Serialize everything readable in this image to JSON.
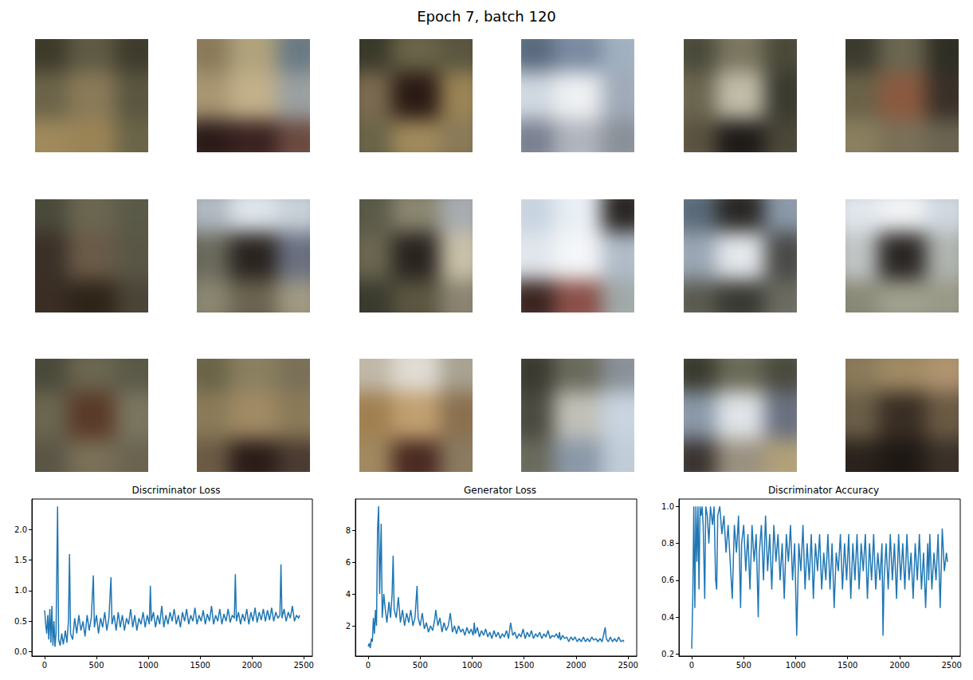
{
  "title": "Epoch 7, batch 120",
  "images": [
    [
      "#3d3a2a",
      "#5e5a44",
      "#3e3b2c",
      "#6b6448",
      "#8a7a58",
      "#5a5640",
      "#a08a5c",
      "#9a8456",
      "#6a6448"
    ],
    [
      "#8a7a5a",
      "#b0a27c",
      "#6a7a84",
      "#a89572",
      "#c2b08a",
      "#9aa0a0",
      "#2a1a18",
      "#3a2220",
      "#6a4a40"
    ],
    [
      "#3a3a2a",
      "#6a6448",
      "#5a5640",
      "#7a6a50",
      "#2a1a14",
      "#9a8456",
      "#6a6448",
      "#a08a5c",
      "#8a7a58"
    ],
    [
      "#5a6a7e",
      "#7a8aa0",
      "#a0b0c0",
      "#d0d8e0",
      "#eef0f2",
      "#a0aab8",
      "#7a8090",
      "#b0b4bc",
      "#8a9098"
    ],
    [
      "#4a4a3a",
      "#7a7660",
      "#4a4838",
      "#6a6650",
      "#c0bca8",
      "#3a3a30",
      "#5a5240",
      "#1e1a18",
      "#4a4638"
    ],
    [
      "#3a3a2e",
      "#6a6650",
      "#2e2e24",
      "#6a6248",
      "#8a5a40",
      "#3a3028",
      "#8a8060",
      "#7a7058",
      "#6a6450"
    ],
    [
      "#4a4a3a",
      "#6a6650",
      "#5a5a48",
      "#3a3028",
      "#6a5a48",
      "#5a5646",
      "#3a2e24",
      "#2e2418",
      "#4a4436"
    ],
    [
      "#b0b8c0",
      "#dde4ea",
      "#c8d0d8",
      "#6a6a5c",
      "#2a2420",
      "#6a7080",
      "#8a8670",
      "#6a6450",
      "#a09a84"
    ],
    [
      "#5a5a48",
      "#8a8670",
      "#a8acb0",
      "#6a6650",
      "#2a2420",
      "#c8c0a8",
      "#3a3a2e",
      "#5a5640",
      "#8a8470"
    ],
    [
      "#c8d4e0",
      "#e8eef4",
      "#2a2624",
      "#e0e6ec",
      "#f4f6f8",
      "#b0bcc8",
      "#3a2420",
      "#8a5048",
      "#a0a8a8"
    ],
    [
      "#5a6a78",
      "#2a2826",
      "#8a98a8",
      "#9aa6b4",
      "#e4e8ec",
      "#4a4a48",
      "#5a5a50",
      "#3a3a34",
      "#6a6a60"
    ],
    [
      "#e0e6ec",
      "#f0f2f4",
      "#d0d8e0",
      "#c0c4c4",
      "#2a2624",
      "#b0b4b0",
      "#8a8a78",
      "#a0a08e",
      "#9a9a88"
    ],
    [
      "#4a4a3a",
      "#6a6650",
      "#5a5a48",
      "#6a6650",
      "#5a3a28",
      "#7a7660",
      "#5a5646",
      "#7a7058",
      "#6a6450"
    ],
    [
      "#6a6448",
      "#8a8060",
      "#7a7058",
      "#8a7a58",
      "#a08a64",
      "#8a7a58",
      "#6a5a44",
      "#2a1c18",
      "#4a3a30"
    ],
    [
      "#c0b8a8",
      "#e0dcd4",
      "#a8a290",
      "#a08050",
      "#c0a070",
      "#8a7050",
      "#a08860",
      "#4a2a22",
      "#8a7a60"
    ],
    [
      "#3a3a30",
      "#6a6a5c",
      "#8a9098",
      "#4a4a40",
      "#c0c0b8",
      "#c8d4e0",
      "#6a6a5c",
      "#8a98a8",
      "#c0ccd8"
    ],
    [
      "#3a3a2e",
      "#6a6a58",
      "#4a4a3e",
      "#8a98a8",
      "#e0e4e8",
      "#6a7080",
      "#3a3430",
      "#9a9080",
      "#b0a078"
    ],
    [
      "#8a7a5a",
      "#a08a64",
      "#b09470",
      "#6a5e48",
      "#3a2e24",
      "#6a5a44",
      "#2a221c",
      "#1e1814",
      "#3a3028"
    ]
  ],
  "chart_data": [
    {
      "type": "line",
      "title": "Discriminator Loss",
      "color": "#1f77b4",
      "x": [
        0,
        10,
        20,
        30,
        40,
        50,
        60,
        70,
        80,
        90,
        100,
        110,
        125,
        135,
        150,
        165,
        180,
        200,
        215,
        230,
        240,
        250,
        270,
        290,
        310,
        330,
        350,
        370,
        390,
        410,
        430,
        450,
        470,
        480,
        500,
        520,
        540,
        560,
        580,
        600,
        620,
        640,
        650,
        670,
        690,
        710,
        730,
        750,
        770,
        790,
        810,
        830,
        850,
        870,
        890,
        910,
        930,
        950,
        970,
        990,
        1010,
        1020,
        1030,
        1050,
        1070,
        1090,
        1110,
        1130,
        1150,
        1170,
        1190,
        1210,
        1230,
        1250,
        1270,
        1290,
        1310,
        1330,
        1350,
        1370,
        1390,
        1410,
        1430,
        1450,
        1470,
        1490,
        1510,
        1530,
        1550,
        1570,
        1590,
        1610,
        1630,
        1650,
        1670,
        1690,
        1710,
        1730,
        1750,
        1770,
        1790,
        1810,
        1830,
        1840,
        1850,
        1870,
        1890,
        1910,
        1930,
        1950,
        1970,
        1990,
        2010,
        2030,
        2050,
        2070,
        2090,
        2110,
        2130,
        2150,
        2170,
        2190,
        2210,
        2230,
        2250,
        2270,
        2280,
        2290,
        2310,
        2330,
        2350,
        2370,
        2390,
        2410,
        2430,
        2450,
        2460
      ],
      "values": [
        0.68,
        0.45,
        0.3,
        0.6,
        0.2,
        0.7,
        0.15,
        0.75,
        0.1,
        0.5,
        0.08,
        0.3,
        2.38,
        0.2,
        0.1,
        0.3,
        0.12,
        0.35,
        0.15,
        0.5,
        1.6,
        0.3,
        0.2,
        0.55,
        0.3,
        0.6,
        0.35,
        0.5,
        0.25,
        0.6,
        0.35,
        0.55,
        1.25,
        0.4,
        0.6,
        0.3,
        0.55,
        0.4,
        0.65,
        0.35,
        0.55,
        1.22,
        0.45,
        0.6,
        0.35,
        0.65,
        0.4,
        0.6,
        0.35,
        0.55,
        0.45,
        0.7,
        0.4,
        0.6,
        0.35,
        0.55,
        0.45,
        0.65,
        0.4,
        0.6,
        0.45,
        1.08,
        0.5,
        0.65,
        0.4,
        0.6,
        0.45,
        0.75,
        0.4,
        0.6,
        0.45,
        0.65,
        0.5,
        0.7,
        0.45,
        0.6,
        0.4,
        0.65,
        0.5,
        0.7,
        0.45,
        0.6,
        0.5,
        0.72,
        0.45,
        0.6,
        0.5,
        0.68,
        0.45,
        0.62,
        0.5,
        0.75,
        0.45,
        0.6,
        0.5,
        0.7,
        0.45,
        0.62,
        0.5,
        0.7,
        0.48,
        0.6,
        0.55,
        1.27,
        0.5,
        0.65,
        0.45,
        0.62,
        0.5,
        0.7,
        0.45,
        0.65,
        0.5,
        0.72,
        0.48,
        0.65,
        0.52,
        0.7,
        0.5,
        0.68,
        0.52,
        0.72,
        0.5,
        0.65,
        0.55,
        0.6,
        1.43,
        0.55,
        0.7,
        0.5,
        0.65,
        0.55,
        0.75,
        0.5,
        0.6,
        0.55,
        0.6
      ],
      "xlim": [
        -123,
        2583
      ],
      "xticks": [
        0,
        500,
        1000,
        1500,
        2000,
        2500
      ],
      "ylim": [
        -0.07,
        2.5
      ],
      "yticks": [
        {
          "value": 0,
          "label": "0.0"
        },
        {
          "value": 0.5,
          "label": "0.5"
        },
        {
          "value": 1,
          "label": "1.0"
        },
        {
          "value": 1.5,
          "label": "1.5"
        },
        {
          "value": 2,
          "label": "2.0"
        }
      ],
      "grid": false
    },
    {
      "type": "line",
      "title": "Generator Loss",
      "color": "#1f77b4",
      "x": [
        0,
        10,
        20,
        30,
        40,
        50,
        60,
        70,
        80,
        90,
        100,
        110,
        125,
        135,
        150,
        165,
        180,
        200,
        215,
        230,
        240,
        250,
        270,
        290,
        310,
        330,
        350,
        370,
        390,
        410,
        430,
        450,
        470,
        480,
        500,
        520,
        540,
        560,
        580,
        600,
        620,
        640,
        650,
        670,
        690,
        710,
        730,
        750,
        770,
        790,
        810,
        830,
        850,
        870,
        890,
        910,
        930,
        950,
        970,
        990,
        1010,
        1020,
        1030,
        1050,
        1070,
        1090,
        1110,
        1130,
        1150,
        1170,
        1190,
        1210,
        1230,
        1250,
        1270,
        1290,
        1310,
        1330,
        1350,
        1370,
        1390,
        1410,
        1430,
        1450,
        1470,
        1490,
        1510,
        1530,
        1550,
        1570,
        1590,
        1610,
        1630,
        1650,
        1670,
        1690,
        1710,
        1730,
        1750,
        1770,
        1790,
        1810,
        1830,
        1840,
        1850,
        1870,
        1890,
        1910,
        1930,
        1950,
        1970,
        1990,
        2010,
        2030,
        2050,
        2070,
        2090,
        2110,
        2130,
        2150,
        2170,
        2190,
        2210,
        2230,
        2250,
        2270,
        2280,
        2290,
        2310,
        2330,
        2350,
        2370,
        2390,
        2410,
        2430,
        2450,
        2460
      ],
      "values": [
        0.7,
        0.9,
        0.6,
        1.2,
        1.0,
        2.5,
        1.5,
        3.0,
        2.0,
        8.0,
        9.5,
        4.0,
        8.4,
        2.5,
        4.0,
        3.0,
        2.2,
        3.5,
        2.5,
        4.0,
        6.4,
        3.0,
        2.5,
        3.8,
        2.2,
        3.0,
        2.0,
        2.8,
        2.2,
        3.0,
        2.0,
        2.5,
        4.5,
        2.5,
        2.0,
        2.8,
        1.8,
        2.2,
        1.6,
        2.0,
        1.7,
        2.4,
        3.0,
        2.0,
        2.5,
        1.6,
        2.2,
        1.7,
        2.0,
        2.8,
        1.6,
        2.0,
        1.5,
        2.0,
        1.6,
        1.8,
        1.4,
        1.9,
        1.5,
        1.8,
        1.4,
        2.2,
        1.5,
        1.9,
        1.3,
        1.7,
        1.4,
        1.8,
        1.3,
        1.6,
        1.2,
        1.7,
        1.3,
        1.6,
        1.2,
        1.5,
        1.3,
        1.7,
        1.2,
        2.2,
        1.4,
        1.6,
        1.2,
        1.5,
        1.3,
        1.8,
        1.2,
        1.6,
        1.3,
        1.7,
        1.2,
        1.5,
        1.3,
        1.6,
        1.2,
        1.5,
        1.3,
        1.7,
        1.2,
        1.4,
        1.3,
        1.5,
        1.2,
        1.6,
        1.1,
        1.4,
        1.2,
        1.3,
        1.0,
        1.3,
        1.1,
        1.3,
        1.0,
        1.2,
        1.0,
        1.3,
        1.0,
        1.2,
        1.0,
        1.3,
        1.1,
        1.2,
        1.0,
        1.2,
        1.0,
        1.6,
        1.9,
        1.2,
        1.0,
        1.3,
        1.0,
        1.2,
        1.0,
        1.3,
        1.0,
        1.1,
        1.0
      ],
      "xlim": [
        -123,
        2583
      ],
      "xticks": [
        0,
        500,
        1000,
        1500,
        2000,
        2500
      ],
      "ylim": [
        0.1,
        9.95
      ],
      "yticks": [
        2,
        4,
        6,
        8
      ],
      "grid": false
    },
    {
      "type": "line",
      "title": "Discriminator Accuracy",
      "color": "#1f77b4",
      "x": [
        0,
        10,
        20,
        30,
        40,
        50,
        60,
        70,
        80,
        90,
        100,
        110,
        125,
        135,
        150,
        165,
        180,
        200,
        215,
        230,
        240,
        250,
        270,
        290,
        310,
        330,
        350,
        370,
        390,
        410,
        430,
        450,
        470,
        480,
        500,
        520,
        540,
        560,
        580,
        600,
        620,
        640,
        650,
        670,
        690,
        710,
        730,
        750,
        770,
        790,
        810,
        830,
        850,
        870,
        890,
        910,
        930,
        950,
        970,
        990,
        1010,
        1020,
        1030,
        1050,
        1070,
        1090,
        1110,
        1130,
        1150,
        1170,
        1190,
        1210,
        1230,
        1250,
        1270,
        1290,
        1310,
        1330,
        1350,
        1370,
        1390,
        1410,
        1430,
        1450,
        1470,
        1490,
        1510,
        1530,
        1550,
        1570,
        1590,
        1610,
        1630,
        1650,
        1670,
        1690,
        1710,
        1730,
        1750,
        1770,
        1790,
        1810,
        1830,
        1840,
        1850,
        1870,
        1890,
        1910,
        1930,
        1950,
        1970,
        1990,
        2010,
        2030,
        2050,
        2070,
        2090,
        2110,
        2130,
        2150,
        2170,
        2190,
        2210,
        2230,
        2250,
        2270,
        2280,
        2290,
        2310,
        2330,
        2350,
        2370,
        2390,
        2410,
        2430,
        2450,
        2460
      ],
      "values": [
        0.23,
        0.5,
        1.0,
        0.45,
        1.0,
        0.7,
        1.0,
        0.55,
        1.0,
        0.95,
        1.0,
        0.9,
        0.5,
        1.0,
        0.95,
        0.8,
        1.0,
        0.9,
        1.0,
        0.6,
        0.55,
        0.95,
        1.0,
        0.85,
        0.95,
        0.75,
        0.9,
        0.7,
        0.5,
        0.9,
        0.75,
        0.95,
        0.45,
        0.8,
        0.9,
        0.65,
        0.85,
        0.55,
        0.9,
        0.7,
        0.85,
        0.4,
        0.75,
        0.9,
        0.6,
        0.95,
        0.65,
        0.85,
        0.55,
        0.9,
        0.7,
        0.85,
        0.6,
        0.8,
        0.5,
        0.85,
        0.7,
        0.9,
        0.6,
        0.8,
        0.3,
        0.55,
        0.8,
        0.65,
        0.9,
        0.55,
        0.8,
        0.6,
        0.85,
        0.5,
        0.8,
        0.65,
        0.85,
        0.55,
        0.75,
        0.6,
        0.85,
        0.55,
        0.8,
        0.45,
        0.75,
        0.65,
        0.85,
        0.55,
        0.8,
        0.6,
        0.85,
        0.5,
        0.8,
        0.6,
        0.85,
        0.55,
        0.8,
        0.65,
        0.85,
        0.5,
        0.8,
        0.6,
        0.85,
        0.55,
        0.75,
        0.6,
        0.8,
        0.3,
        0.6,
        0.8,
        0.55,
        0.85,
        0.6,
        0.8,
        0.5,
        0.85,
        0.6,
        0.8,
        0.55,
        0.85,
        0.6,
        0.75,
        0.5,
        0.8,
        0.6,
        0.85,
        0.55,
        0.75,
        0.45,
        0.8,
        0.6,
        0.85,
        0.55,
        0.75,
        0.6,
        0.85,
        0.45,
        0.88,
        0.65,
        0.75,
        0.7
      ],
      "xlim": [
        -123,
        2583
      ],
      "xticks": [
        0,
        500,
        1000,
        1500,
        2000,
        2500
      ],
      "ylim": [
        0.19,
        1.04
      ],
      "yticks": [
        0.2,
        0.4,
        0.6,
        0.8,
        {
          "value": 1,
          "label": "1.0"
        }
      ],
      "grid": false
    }
  ]
}
